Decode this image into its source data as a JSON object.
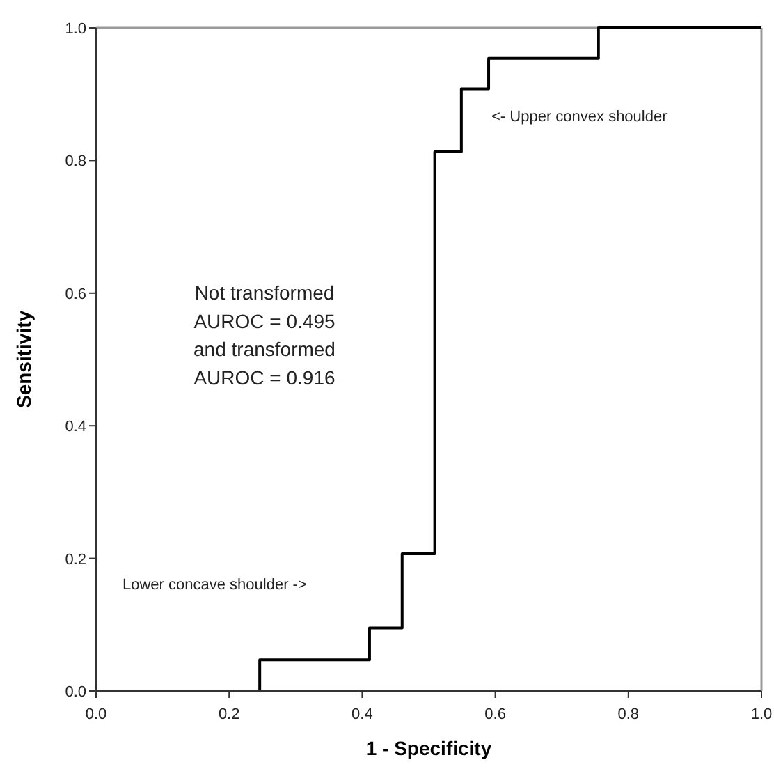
{
  "chart_data": {
    "type": "step",
    "xlabel": "1 - Specificity",
    "ylabel": "Sensitivity",
    "x": [
      0,
      0.246,
      0.411,
      0.46,
      0.509,
      0.549,
      0.59,
      0.755,
      1
    ],
    "series": [
      {
        "color": "#000000",
        "values": [
          0,
          0.047,
          0.095,
          0.207,
          0.813,
          0.908,
          0.954,
          1,
          1
        ]
      }
    ],
    "xlim": [
      0,
      1
    ],
    "ylim": [
      0,
      1
    ],
    "xticks": [
      {
        "value": 0,
        "label": "0.0"
      },
      0.2,
      0.4,
      0.6,
      0.8,
      {
        "value": 1,
        "label": "1.0"
      }
    ],
    "yticks": [
      {
        "value": 0,
        "label": "0.0"
      },
      0.2,
      0.4,
      0.6,
      0.8,
      {
        "value": 1,
        "label": "1.0"
      }
    ],
    "annotations": [
      "<- Upper convex shoulder",
      "Not transformed\nAUROC = 0.495\nand transformed\nAUROC = 0.916",
      "Lower concave shoulder ->"
    ],
    "marker": "none",
    "line_style": "solid"
  }
}
